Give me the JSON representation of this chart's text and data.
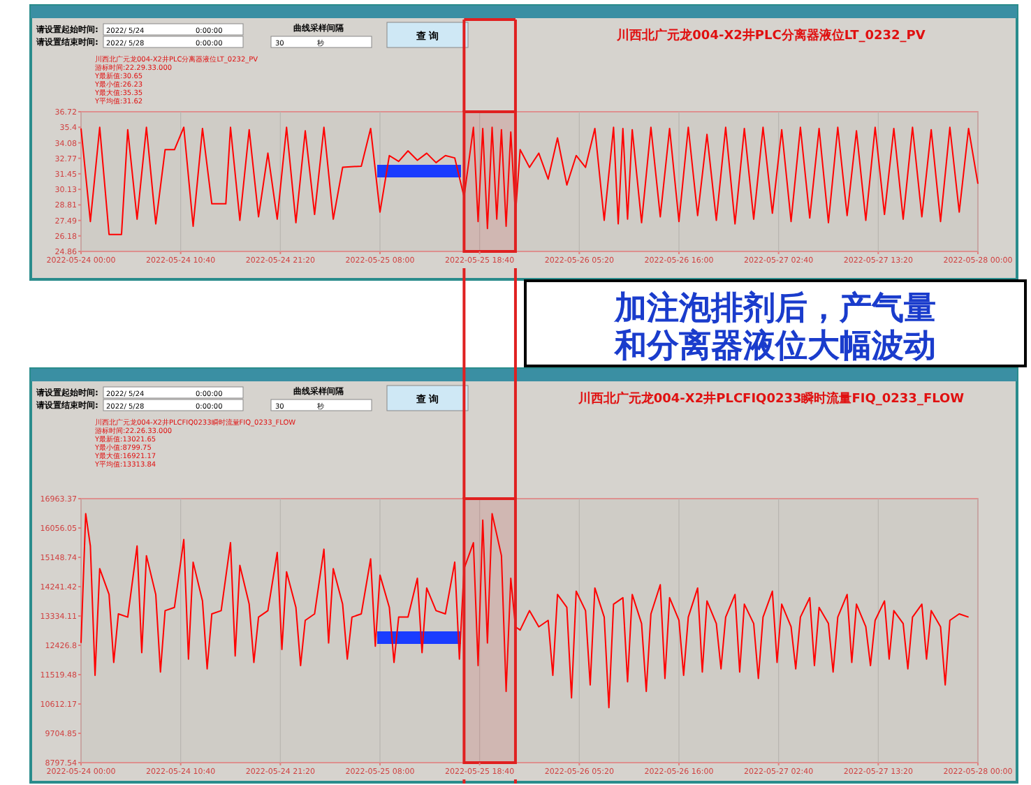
{
  "chart_data": [
    {
      "type": "line",
      "title": "川西北广元龙004-X2井PLC分离器液位LT_0232_PV",
      "color": "#ff0000",
      "grid": "x",
      "bands": [
        {
          "axis": "x",
          "from": "2022-05-25T17:00",
          "to": "2022-05-25T22:30",
          "color": "#e02020"
        }
      ],
      "annotations": [
        "请设置起始时间:",
        "请设置结束时间:",
        "2022/ 5/24",
        "2022/ 5/28",
        "0:00:00",
        "0:00:00",
        "曲线采样间隔",
        "30",
        "秒",
        "查 询",
        "川西北广元龙004-X2井PLC分离器液位LT_0232_PV",
        "游标时间:22.29.33.000",
        "Y最新值:30.65",
        "Y最小值:26.23",
        "Y最大值:35.35",
        "Y平均值:31.62",
        "加注泡排剂后，产气量和分离器液位大幅波动"
      ],
      "xlim": [
        "2022-05-24T00:00",
        "2022-05-28T00:00"
      ],
      "xticks": [
        {
          "value": "2022-05-24T00:00",
          "label": "2022-05-24 00:00"
        },
        {
          "value": "2022-05-24T10:40",
          "label": "2022-05-24 10:40"
        },
        {
          "value": "2022-05-24T21:20",
          "label": "2022-05-24 21:20"
        },
        {
          "value": "2022-05-25T08:00",
          "label": "2022-05-25 08:00"
        },
        {
          "value": "2022-05-25T18:40",
          "label": "2022-05-25 18:40"
        },
        {
          "value": "2022-05-26T05:20",
          "label": "2022-05-26 05:20"
        },
        {
          "value": "2022-05-26T16:00",
          "label": "2022-05-26 16:00"
        },
        {
          "value": "2022-05-27T02:40",
          "label": "2022-05-27 02:40"
        },
        {
          "value": "2022-05-27T13:20",
          "label": "2022-05-27 13:20"
        },
        {
          "value": "2022-05-28T00:00",
          "label": "2022-05-28 00:00"
        }
      ],
      "ylim": [
        24.86,
        36.72
      ],
      "yticks": [
        24.86,
        26.18,
        27.49,
        28.81,
        30.13,
        31.45,
        32.77,
        34.08,
        35.4,
        36.72
      ],
      "x": [
        "2022-05-24T00:00",
        "2022-05-24T01:00",
        "2022-05-24T02:00",
        "2022-05-24T03:00",
        "2022-05-24T04:20",
        "2022-05-24T05:00",
        "2022-05-24T06:00",
        "2022-05-24T07:00",
        "2022-05-24T08:00",
        "2022-05-24T09:00",
        "2022-05-24T10:00",
        "2022-05-24T11:00",
        "2022-05-24T12:00",
        "2022-05-24T13:00",
        "2022-05-24T14:00",
        "2022-05-24T15:30",
        "2022-05-24T16:00",
        "2022-05-24T17:00",
        "2022-05-24T18:00",
        "2022-05-24T19:00",
        "2022-05-24T20:00",
        "2022-05-24T21:00",
        "2022-05-24T22:00",
        "2022-05-24T23:00",
        "2022-05-25T00:00",
        "2022-05-25T01:00",
        "2022-05-25T02:00",
        "2022-05-25T03:00",
        "2022-05-25T04:00",
        "2022-05-25T06:00",
        "2022-05-25T07:00",
        "2022-05-25T08:00",
        "2022-05-25T09:00",
        "2022-05-25T10:00",
        "2022-05-25T11:00",
        "2022-05-25T12:00",
        "2022-05-25T13:00",
        "2022-05-25T14:00",
        "2022-05-25T15:00",
        "2022-05-25T16:00",
        "2022-05-25T17:00",
        "2022-05-25T18:00",
        "2022-05-25T18:30",
        "2022-05-25T19:00",
        "2022-05-25T19:30",
        "2022-05-25T20:00",
        "2022-05-25T20:30",
        "2022-05-25T21:00",
        "2022-05-25T21:30",
        "2022-05-25T22:00",
        "2022-05-25T22:30",
        "2022-05-25T23:00",
        "2022-05-26T00:00",
        "2022-05-26T01:00",
        "2022-05-26T02:00",
        "2022-05-26T03:00",
        "2022-05-26T04:00",
        "2022-05-26T05:00",
        "2022-05-26T06:00",
        "2022-05-26T07:00",
        "2022-05-26T08:00",
        "2022-05-26T09:00",
        "2022-05-26T09:30",
        "2022-05-26T10:00",
        "2022-05-26T10:30",
        "2022-05-26T11:00",
        "2022-05-26T12:00",
        "2022-05-26T13:00",
        "2022-05-26T14:00",
        "2022-05-26T15:00",
        "2022-05-26T16:00",
        "2022-05-26T17:00",
        "2022-05-26T18:00",
        "2022-05-26T19:00",
        "2022-05-26T20:00",
        "2022-05-26T21:00",
        "2022-05-26T22:00",
        "2022-05-26T23:00",
        "2022-05-27T00:00",
        "2022-05-27T01:00",
        "2022-05-27T02:00",
        "2022-05-27T03:00",
        "2022-05-27T04:00",
        "2022-05-27T05:00",
        "2022-05-27T06:00",
        "2022-05-27T07:00",
        "2022-05-27T08:00",
        "2022-05-27T09:00",
        "2022-05-27T10:00",
        "2022-05-27T11:00",
        "2022-05-27T12:00",
        "2022-05-27T13:00",
        "2022-05-27T14:00",
        "2022-05-27T15:00",
        "2022-05-27T16:00",
        "2022-05-27T17:00",
        "2022-05-27T18:00",
        "2022-05-27T19:00",
        "2022-05-27T20:00",
        "2022-05-27T21:00",
        "2022-05-27T22:00",
        "2022-05-27T23:00",
        "2022-05-28T00:00"
      ],
      "values": [
        35.3,
        27.4,
        35.4,
        26.3,
        26.3,
        35.2,
        27.6,
        35.4,
        27.2,
        33.5,
        33.5,
        35.4,
        27.0,
        35.3,
        28.9,
        28.9,
        35.4,
        27.5,
        35.2,
        27.8,
        33.2,
        27.6,
        35.4,
        27.3,
        35.1,
        28.0,
        35.4,
        27.6,
        32.0,
        32.1,
        35.3,
        28.2,
        33.0,
        32.5,
        33.4,
        32.6,
        33.2,
        32.4,
        33.0,
        32.8,
        29.5,
        35.4,
        27.4,
        35.3,
        26.8,
        35.4,
        27.6,
        35.2,
        27.0,
        35.0,
        28.0,
        33.5,
        32.0,
        33.2,
        31.0,
        34.5,
        30.5,
        33.0,
        32.0,
        35.3,
        27.5,
        35.4,
        27.2,
        35.3,
        27.6,
        35.2,
        27.3,
        35.4,
        27.8,
        35.3,
        27.4,
        35.4,
        27.9,
        34.8,
        27.5,
        35.4,
        27.2,
        35.3,
        27.6,
        35.4,
        28.1,
        35.2,
        27.4,
        35.4,
        27.7,
        35.3,
        27.3,
        35.4,
        27.9,
        35.1,
        27.5,
        35.4,
        28.0,
        35.3,
        27.6,
        35.4,
        27.8,
        35.2,
        27.4,
        35.4,
        28.2,
        35.3,
        30.6
      ]
    },
    {
      "type": "line",
      "title": "川西北广元龙004-X2井PLCFIQ0233瞬时流量FIQ_0233_FLOW",
      "color": "#ff0000",
      "grid": "x",
      "bands": [
        {
          "axis": "x",
          "from": "2022-05-25T17:00",
          "to": "2022-05-25T22:30",
          "color": "#e02020"
        }
      ],
      "annotations": [
        "请设置起始时间:",
        "请设置结束时间:",
        "2022/ 5/24",
        "2022/ 5/28",
        "0:00:00",
        "0:00:00",
        "曲线采样间隔",
        "30",
        "秒",
        "查 询",
        "川西北广元龙004-X2井PLCFIQ0233瞬时流量FIQ_0233_FLOW",
        "游标时间:22.26.33.000",
        "Y最新值:13021.65",
        "Y最小值:8799.75",
        "Y最大值:16921.17",
        "Y平均值:13313.84"
      ],
      "xlim": [
        "2022-05-24T00:00",
        "2022-05-28T00:00"
      ],
      "xticks": [
        {
          "value": "2022-05-24T00:00",
          "label": "2022-05-24 00:00"
        },
        {
          "value": "2022-05-24T10:40",
          "label": "2022-05-24 10:40"
        },
        {
          "value": "2022-05-24T21:20",
          "label": "2022-05-24 21:20"
        },
        {
          "value": "2022-05-25T08:00",
          "label": "2022-05-25 08:00"
        },
        {
          "value": "2022-05-25T18:40",
          "label": "2022-05-25 18:40"
        },
        {
          "value": "2022-05-26T05:20",
          "label": "2022-05-26 05:20"
        },
        {
          "value": "2022-05-26T16:00",
          "label": "2022-05-26 16:00"
        },
        {
          "value": "2022-05-27T02:40",
          "label": "2022-05-27 02:40"
        },
        {
          "value": "2022-05-27T13:20",
          "label": "2022-05-27 13:20"
        },
        {
          "value": "2022-05-28T00:00",
          "label": "2022-05-28 00:00"
        }
      ],
      "ylim": [
        8797.54,
        16963.37
      ],
      "yticks": [
        8797.54,
        9704.85,
        10612.17,
        11519.48,
        12426.8,
        13334.11,
        14241.42,
        15148.74,
        16056.05,
        16963.37
      ],
      "x": [
        "2022-05-24T00:00",
        "2022-05-24T00:30",
        "2022-05-24T01:00",
        "2022-05-24T01:30",
        "2022-05-24T02:00",
        "2022-05-24T03:00",
        "2022-05-24T03:30",
        "2022-05-24T04:00",
        "2022-05-24T05:00",
        "2022-05-24T06:00",
        "2022-05-24T06:30",
        "2022-05-24T07:00",
        "2022-05-24T08:00",
        "2022-05-24T08:30",
        "2022-05-24T09:00",
        "2022-05-24T10:00",
        "2022-05-24T11:00",
        "2022-05-24T11:30",
        "2022-05-24T12:00",
        "2022-05-24T13:00",
        "2022-05-24T13:30",
        "2022-05-24T14:00",
        "2022-05-24T15:00",
        "2022-05-24T16:00",
        "2022-05-24T16:30",
        "2022-05-24T17:00",
        "2022-05-24T18:00",
        "2022-05-24T18:30",
        "2022-05-24T19:00",
        "2022-05-24T20:00",
        "2022-05-24T21:00",
        "2022-05-24T21:30",
        "2022-05-24T22:00",
        "2022-05-24T23:00",
        "2022-05-24T23:30",
        "2022-05-25T00:00",
        "2022-05-25T01:00",
        "2022-05-25T02:00",
        "2022-05-25T02:30",
        "2022-05-25T03:00",
        "2022-05-25T04:00",
        "2022-05-25T04:30",
        "2022-05-25T05:00",
        "2022-05-25T06:00",
        "2022-05-25T07:00",
        "2022-05-25T07:30",
        "2022-05-25T08:00",
        "2022-05-25T09:00",
        "2022-05-25T09:30",
        "2022-05-25T10:00",
        "2022-05-25T11:00",
        "2022-05-25T12:00",
        "2022-05-25T12:30",
        "2022-05-25T13:00",
        "2022-05-25T14:00",
        "2022-05-25T15:00",
        "2022-05-25T16:00",
        "2022-05-25T16:30",
        "2022-05-25T17:00",
        "2022-05-25T18:00",
        "2022-05-25T18:30",
        "2022-05-25T19:00",
        "2022-05-25T19:30",
        "2022-05-25T20:00",
        "2022-05-25T21:00",
        "2022-05-25T21:30",
        "2022-05-25T22:00",
        "2022-05-25T22:30",
        "2022-05-25T23:00",
        "2022-05-26T00:00",
        "2022-05-26T01:00",
        "2022-05-26T02:00",
        "2022-05-26T02:30",
        "2022-05-26T03:00",
        "2022-05-26T04:00",
        "2022-05-26T04:30",
        "2022-05-26T05:00",
        "2022-05-26T06:00",
        "2022-05-26T06:30",
        "2022-05-26T07:00",
        "2022-05-26T08:00",
        "2022-05-26T08:30",
        "2022-05-26T09:00",
        "2022-05-26T10:00",
        "2022-05-26T10:30",
        "2022-05-26T11:00",
        "2022-05-26T12:00",
        "2022-05-26T12:30",
        "2022-05-26T13:00",
        "2022-05-26T14:00",
        "2022-05-26T14:30",
        "2022-05-26T15:00",
        "2022-05-26T16:00",
        "2022-05-26T16:30",
        "2022-05-26T17:00",
        "2022-05-26T18:00",
        "2022-05-26T18:30",
        "2022-05-26T19:00",
        "2022-05-26T20:00",
        "2022-05-26T20:30",
        "2022-05-26T21:00",
        "2022-05-26T22:00",
        "2022-05-26T22:30",
        "2022-05-26T23:00",
        "2022-05-27T00:00",
        "2022-05-27T00:30",
        "2022-05-27T01:00",
        "2022-05-27T02:00",
        "2022-05-27T02:30",
        "2022-05-27T03:00",
        "2022-05-27T04:00",
        "2022-05-27T04:30",
        "2022-05-27T05:00",
        "2022-05-27T06:00",
        "2022-05-27T06:30",
        "2022-05-27T07:00",
        "2022-05-27T08:00",
        "2022-05-27T08:30",
        "2022-05-27T09:00",
        "2022-05-27T10:00",
        "2022-05-27T10:30",
        "2022-05-27T11:00",
        "2022-05-27T12:00",
        "2022-05-27T12:30",
        "2022-05-27T13:00",
        "2022-05-27T14:00",
        "2022-05-27T14:30",
        "2022-05-27T15:00",
        "2022-05-27T16:00",
        "2022-05-27T16:30",
        "2022-05-27T17:00",
        "2022-05-27T18:00",
        "2022-05-27T18:30",
        "2022-05-27T19:00",
        "2022-05-27T20:00",
        "2022-05-27T20:30",
        "2022-05-27T21:00",
        "2022-05-27T22:00",
        "2022-05-27T23:00"
      ],
      "values": [
        12500,
        16500,
        15500,
        11500,
        14800,
        14000,
        11900,
        13400,
        13300,
        15500,
        12200,
        15200,
        14000,
        11600,
        13500,
        13600,
        15700,
        12000,
        15000,
        13800,
        11700,
        13400,
        13500,
        15600,
        12100,
        14900,
        13700,
        11900,
        13300,
        13500,
        15300,
        12300,
        14700,
        13600,
        11800,
        13200,
        13400,
        15400,
        12500,
        14800,
        13700,
        12000,
        13300,
        13400,
        15100,
        12400,
        14600,
        13600,
        11900,
        13300,
        13300,
        14500,
        12200,
        14200,
        13500,
        13400,
        15000,
        12000,
        14800,
        15600,
        11800,
        16300,
        12500,
        16500,
        15200,
        11000,
        14500,
        13000,
        12900,
        13500,
        13000,
        13200,
        11500,
        14000,
        13600,
        10800,
        14100,
        13500,
        11200,
        14200,
        13300,
        10500,
        13700,
        13900,
        11300,
        14000,
        13100,
        11000,
        13400,
        14300,
        11400,
        13900,
        13200,
        11500,
        13300,
        14200,
        11600,
        13800,
        13100,
        11700,
        13300,
        14000,
        11600,
        13700,
        13100,
        11400,
        13300,
        14100,
        11900,
        13700,
        13000,
        11700,
        13300,
        13900,
        11800,
        13600,
        13100,
        11600,
        13300,
        14000,
        11900,
        13700,
        13000,
        11800,
        13200,
        13800,
        12000,
        13500,
        13100,
        11700,
        13300,
        13700,
        12000,
        13500,
        13000,
        11200,
        13200,
        13400,
        13300
      ]
    }
  ]
}
